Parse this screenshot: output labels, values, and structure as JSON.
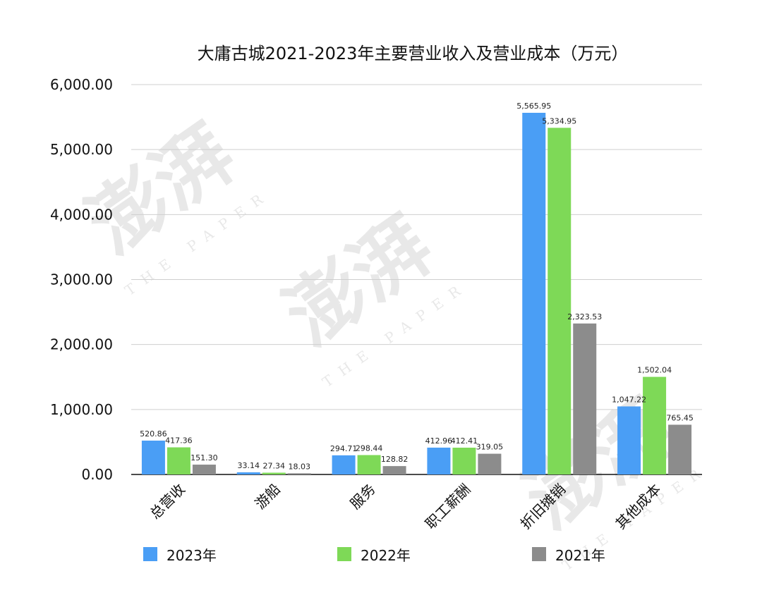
{
  "chart_data": {
    "type": "bar",
    "title": "大庸古城2021-2023年主要营业收入及营业成本（万元）",
    "categories": [
      "总营收",
      "游船",
      "服务",
      "职工薪酬",
      "折旧摊销",
      "其他成本"
    ],
    "series": [
      {
        "name": "2023年",
        "color": "#4a9ef5",
        "values": [
          520.86,
          33.14,
          294.71,
          412.96,
          5565.95,
          1047.22
        ],
        "labels": [
          "520.86",
          "33.14",
          "294.71",
          "412.96",
          "5,565.95",
          "1,047.22"
        ]
      },
      {
        "name": "2022年",
        "color": "#7ed957",
        "values": [
          417.36,
          27.34,
          298.44,
          412.41,
          5334.95,
          1502.04
        ],
        "labels": [
          "417.36",
          "27.34",
          "298.44",
          "412.41",
          "5,334.95",
          "1,502.04"
        ]
      },
      {
        "name": "2021年",
        "color": "#8c8c8c",
        "values": [
          151.3,
          18.03,
          128.82,
          319.05,
          2323.53,
          765.45
        ],
        "labels": [
          "151.30",
          "18.03",
          "128.82",
          "319.05",
          "2,323.53",
          "765.45"
        ]
      }
    ],
    "ylim": [
      0,
      6000
    ],
    "yticks": [
      0,
      1000,
      2000,
      3000,
      4000,
      5000,
      6000
    ],
    "ytick_labels": [
      "0.00",
      "1,000.00",
      "2,000.00",
      "3,000.00",
      "4,000.00",
      "5,000.00",
      "6,000.00"
    ],
    "grid": true,
    "legend_position": "bottom",
    "xlabel": "",
    "ylabel": ""
  },
  "watermark": {
    "text": "澎湃 THE PAPER"
  }
}
